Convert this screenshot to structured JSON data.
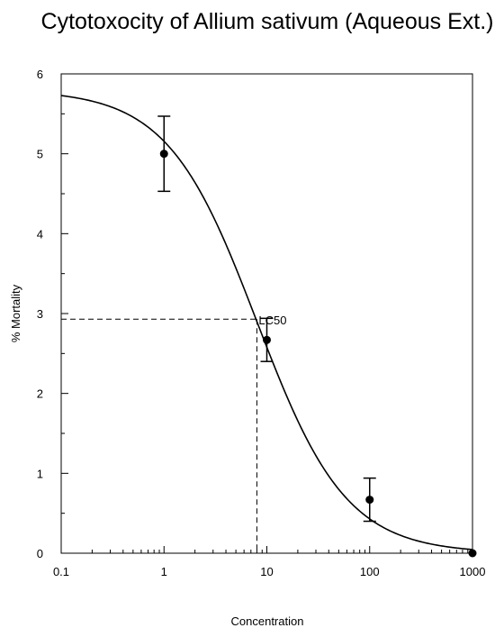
{
  "chart_data": {
    "type": "scatter",
    "title": "Cytotoxocity of Allium sativum (Aqueous Ext.)",
    "xlabel": "Concentration",
    "ylabel": "% Mortality",
    "xscale": "log",
    "xlim": [
      0.1,
      1000
    ],
    "ylim": [
      0,
      6
    ],
    "grid": false,
    "x_ticks": [
      "0.1",
      "1",
      "10",
      "100",
      "1000"
    ],
    "y_ticks": [
      "0",
      "1",
      "2",
      "3",
      "4",
      "5",
      "6"
    ],
    "series": [
      {
        "x": [
          1,
          10,
          100,
          1000
        ],
        "y": [
          5.0,
          2.67,
          0.67,
          0.0
        ],
        "error": [
          0.47,
          0.27,
          0.27,
          0
        ]
      }
    ],
    "fit_curve": {
      "type": "sigmoid",
      "top": 5.8,
      "bottom": 0,
      "ec50": 8.0,
      "hill": 1.0
    },
    "annotations": [
      {
        "text": "LC50",
        "x": 8.0,
        "y": 2.93
      }
    ]
  }
}
